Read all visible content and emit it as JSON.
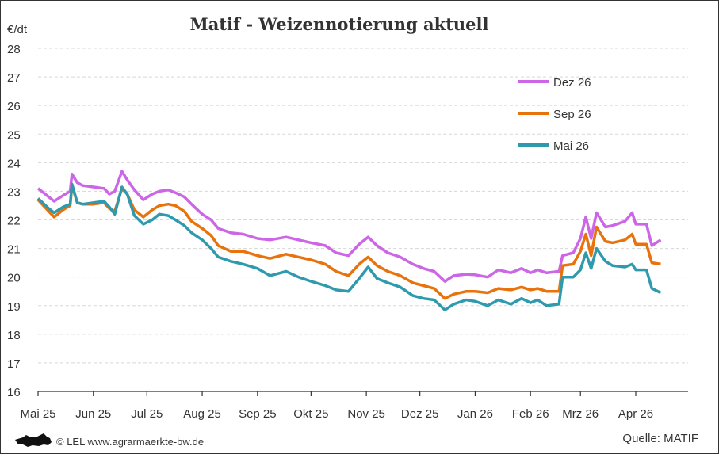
{
  "chart_data": {
    "type": "line",
    "title": "Matif - Weizennotierung aktuell",
    "ylabel": "€/dt",
    "ylim": [
      16,
      28
    ],
    "yticks": [
      16,
      17,
      18,
      19,
      20,
      21,
      22,
      23,
      24,
      25,
      26,
      27,
      28
    ],
    "xlim": [
      "2025-05-01",
      "2026-04-30"
    ],
    "xticks": [
      {
        "date": "2025-05-01",
        "label": "Mai 25"
      },
      {
        "date": "2025-06-01",
        "label": "Jun 25"
      },
      {
        "date": "2025-07-01",
        "label": "Jul 25"
      },
      {
        "date": "2025-08-01",
        "label": "Aug 25"
      },
      {
        "date": "2025-09-01",
        "label": "Sep 25"
      },
      {
        "date": "2025-10-01",
        "label": "Okt 25"
      },
      {
        "date": "2025-11-01",
        "label": "Nov 25"
      },
      {
        "date": "2025-12-01",
        "label": "Dez 25"
      },
      {
        "date": "2026-01-01",
        "label": "Jan 26"
      },
      {
        "date": "2026-02-01",
        "label": "Feb 26"
      },
      {
        "date": "2026-03-01",
        "label": "Mrz 26"
      },
      {
        "date": "2026-04-01",
        "label": "Apr 26"
      }
    ],
    "grid": "horizontal dashed",
    "legend_position": "top-right",
    "x": [
      "2025-05-01",
      "2025-05-07",
      "2025-05-10",
      "2025-05-15",
      "2025-05-19",
      "2025-05-20",
      "2025-05-23",
      "2025-05-26",
      "2025-06-01",
      "2025-06-07",
      "2025-06-10",
      "2025-06-13",
      "2025-06-17",
      "2025-06-20",
      "2025-06-24",
      "2025-06-29",
      "2025-07-04",
      "2025-07-08",
      "2025-07-13",
      "2025-07-17",
      "2025-07-22",
      "2025-07-26",
      "2025-08-01",
      "2025-08-06",
      "2025-08-10",
      "2025-08-17",
      "2025-08-24",
      "2025-09-01",
      "2025-09-08",
      "2025-09-17",
      "2025-09-24",
      "2025-10-01",
      "2025-10-09",
      "2025-10-15",
      "2025-10-22",
      "2025-10-28",
      "2025-11-02",
      "2025-11-07",
      "2025-11-13",
      "2025-11-20",
      "2025-11-27",
      "2025-12-03",
      "2025-12-09",
      "2025-12-15",
      "2025-12-20",
      "2025-12-27",
      "2026-01-01",
      "2026-01-08",
      "2026-01-14",
      "2026-01-21",
      "2026-01-27",
      "2026-02-01",
      "2026-02-05",
      "2026-02-10",
      "2026-02-17",
      "2026-02-19",
      "2026-02-25",
      "2026-03-01",
      "2026-03-04",
      "2026-03-07",
      "2026-03-10",
      "2026-03-15",
      "2026-03-19",
      "2026-03-26",
      "2026-03-30",
      "2026-04-01",
      "2026-04-07",
      "2026-04-10",
      "2026-04-15"
    ],
    "series": [
      {
        "name": "Dez 26",
        "color": "#cc66e6",
        "values": [
          23.1,
          22.8,
          22.65,
          22.85,
          23.0,
          23.6,
          23.3,
          23.2,
          23.15,
          23.1,
          22.9,
          23.0,
          23.7,
          23.4,
          23.05,
          22.7,
          22.9,
          23.0,
          23.05,
          22.95,
          22.8,
          22.55,
          22.2,
          22.0,
          21.7,
          21.55,
          21.5,
          21.35,
          21.3,
          21.4,
          21.3,
          21.2,
          21.1,
          20.85,
          20.75,
          21.15,
          21.4,
          21.1,
          20.85,
          20.7,
          20.45,
          20.3,
          20.2,
          19.85,
          20.05,
          20.1,
          20.08,
          20.0,
          20.25,
          20.15,
          20.3,
          20.15,
          20.25,
          20.15,
          20.2,
          20.75,
          20.85,
          21.35,
          22.1,
          21.35,
          22.25,
          21.75,
          21.8,
          21.95,
          22.25,
          21.85,
          21.85,
          21.1,
          21.3
        ]
      },
      {
        "name": "Sep 26",
        "color": "#e8720c",
        "values": [
          22.7,
          22.3,
          22.1,
          22.35,
          22.5,
          23.2,
          22.6,
          22.55,
          22.55,
          22.6,
          22.4,
          22.3,
          23.1,
          22.9,
          22.35,
          22.1,
          22.35,
          22.5,
          22.55,
          22.5,
          22.3,
          21.95,
          21.7,
          21.45,
          21.1,
          20.9,
          20.9,
          20.75,
          20.65,
          20.8,
          20.7,
          20.6,
          20.45,
          20.2,
          20.05,
          20.45,
          20.7,
          20.4,
          20.2,
          20.05,
          19.8,
          19.7,
          19.6,
          19.25,
          19.4,
          19.5,
          19.5,
          19.45,
          19.6,
          19.55,
          19.65,
          19.55,
          19.6,
          19.5,
          19.5,
          20.4,
          20.45,
          20.9,
          21.5,
          20.75,
          21.75,
          21.25,
          21.2,
          21.3,
          21.5,
          21.15,
          21.15,
          20.5,
          20.45
        ]
      },
      {
        "name": "Mai 26",
        "color": "#2f9aae",
        "values": [
          22.75,
          22.4,
          22.25,
          22.45,
          22.55,
          23.25,
          22.6,
          22.55,
          22.6,
          22.65,
          22.45,
          22.2,
          23.15,
          22.9,
          22.15,
          21.85,
          22.0,
          22.2,
          22.15,
          22.0,
          21.8,
          21.55,
          21.3,
          21.0,
          20.7,
          20.55,
          20.45,
          20.3,
          20.05,
          20.2,
          20.0,
          19.85,
          19.7,
          19.55,
          19.5,
          19.95,
          20.35,
          19.95,
          19.8,
          19.65,
          19.35,
          19.25,
          19.2,
          18.85,
          19.05,
          19.2,
          19.15,
          19.0,
          19.2,
          19.05,
          19.25,
          19.1,
          19.2,
          19.0,
          19.05,
          20.0,
          20.0,
          20.25,
          20.85,
          20.3,
          21.0,
          20.55,
          20.4,
          20.35,
          20.45,
          20.25,
          20.25,
          19.6,
          19.45
        ]
      }
    ]
  },
  "footer": {
    "copyright": "© LEL www.agrarmaerkte-bw.de",
    "source": "Quelle: MATIF"
  }
}
